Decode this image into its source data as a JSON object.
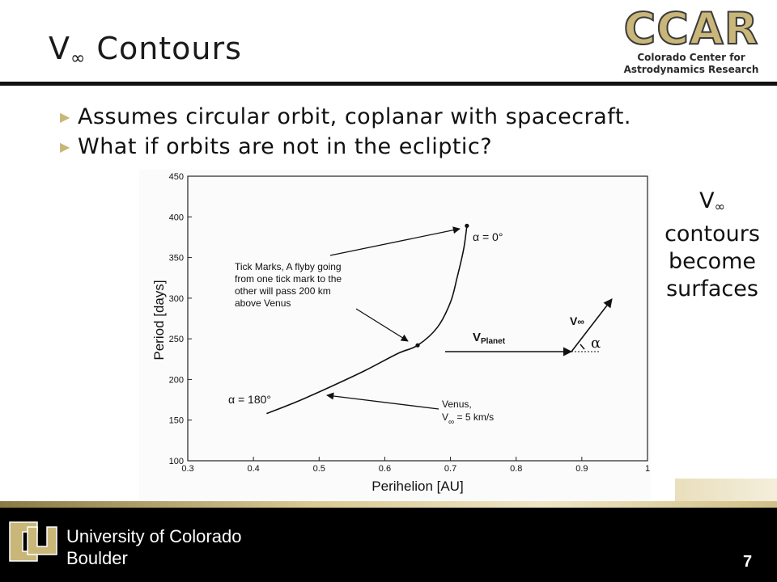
{
  "slide": {
    "title_main": "V",
    "title_sub": "∞",
    "title_rest": " Contours",
    "logo": {
      "word": "CCAR",
      "line1": "Colorado Center for",
      "line2": "Astrodynamics Research"
    },
    "bullets": [
      "Assumes circular orbit, coplanar with spacecraft.",
      "What if orbits are not in the ecliptic?"
    ],
    "side_note": {
      "v": "V",
      "sub": "∞",
      "line1": "contours",
      "line2": "become",
      "line3": "surfaces"
    },
    "footer": {
      "line1": "University of Colorado",
      "line2": "Boulder",
      "page": "7"
    },
    "colors": {
      "gold": "#c9b679",
      "black": "#000000"
    }
  },
  "chart_data": {
    "type": "line",
    "xlabel": "Perihelion [AU]",
    "ylabel": "Period [days]",
    "xlim": [
      0.3,
      1.0
    ],
    "ylim": [
      100,
      450
    ],
    "xticks": [
      0.3,
      0.4,
      0.5,
      0.6,
      0.7,
      0.8,
      0.9,
      1.0
    ],
    "xtick_labels": [
      "0.3",
      "0.4",
      "0.5",
      "0.6",
      "0.7",
      "0.8",
      "0.9",
      "1"
    ],
    "yticks": [
      100,
      150,
      200,
      250,
      300,
      350,
      400,
      450
    ],
    "grid": false,
    "series": [
      {
        "x": [
          0.42,
          0.47,
          0.52,
          0.57,
          0.62,
          0.65,
          0.68,
          0.7,
          0.71,
          0.72,
          0.725
        ],
        "y": [
          158,
          174,
          192,
          211,
          232,
          242,
          264,
          295,
          325,
          360,
          389
        ]
      }
    ],
    "markers": [
      {
        "x": 0.725,
        "y": 389
      },
      {
        "x": 0.65,
        "y": 242
      }
    ],
    "annotations": {
      "alpha0": "α = 0°",
      "alpha180": "α = 180°",
      "ticks_l1": "Tick Marks, A flyby going",
      "ticks_l2": "from one tick mark to the",
      "ticks_l3": "other will pass 200 km",
      "ticks_l4": "above Venus",
      "venus_l1": "Venus,",
      "venus_v": "V",
      "venus_sub": "∞",
      "venus_rest": " = 5 km/s"
    },
    "inset": {
      "v_planet_main": "V",
      "v_planet_sub": "Planet",
      "v_inf_main": "V",
      "v_inf_sub": "∞",
      "alpha": "α"
    }
  }
}
